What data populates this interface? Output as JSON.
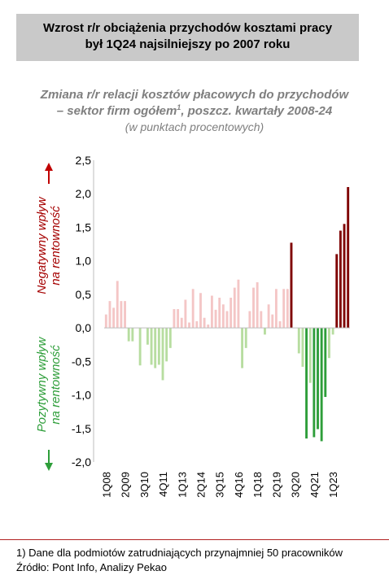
{
  "header": {
    "title_line1": "Wzrost r/r obciążenia przychodów kosztami pracy",
    "title_line2": "był 1Q24 najsilniejszy po 2007 roku"
  },
  "chart_data": {
    "type": "bar",
    "title_line1": "Zmiana r/r relacji kosztów płacowych do przychodów",
    "title_line2_prefix": "– sektor firm ogółem",
    "title_line2_sup": "1",
    "title_line2_suffix": ", poszcz. kwartały 2008-24",
    "subtitle": "(w punktach procentowych)",
    "negative_label_line1": "Negatywny wpływ",
    "negative_label_line2": "na rentowność",
    "positive_label_line1": "Pozytywny wpływ",
    "positive_label_line2": "na rentowność",
    "ylim": [
      -2.0,
      2.5
    ],
    "y_ticks": [
      "2,5",
      "2,0",
      "1,5",
      "1,0",
      "0,5",
      "0,0",
      "-0,5",
      "-1,0",
      "-1,5",
      "-2,0"
    ],
    "x_tick_labels": [
      "1Q08",
      "2Q09",
      "3Q10",
      "4Q11",
      "1Q13",
      "2Q14",
      "3Q15",
      "4Q16",
      "1Q18",
      "2Q19",
      "3Q20",
      "4Q21",
      "1Q23"
    ],
    "categories": [
      "1Q08",
      "2Q08",
      "3Q08",
      "4Q08",
      "1Q09",
      "2Q09",
      "3Q09",
      "4Q09",
      "1Q10",
      "2Q10",
      "3Q10",
      "4Q10",
      "1Q11",
      "2Q11",
      "3Q11",
      "4Q11",
      "1Q12",
      "2Q12",
      "3Q12",
      "4Q12",
      "1Q13",
      "2Q13",
      "3Q13",
      "4Q13",
      "1Q14",
      "2Q14",
      "3Q14",
      "4Q14",
      "1Q15",
      "2Q15",
      "3Q15",
      "4Q15",
      "1Q16",
      "2Q16",
      "3Q16",
      "4Q16",
      "1Q17",
      "2Q17",
      "3Q17",
      "4Q17",
      "1Q18",
      "2Q18",
      "3Q18",
      "4Q18",
      "1Q19",
      "2Q19",
      "3Q19",
      "4Q19",
      "1Q20",
      "2Q20",
      "3Q20",
      "4Q20",
      "1Q21",
      "2Q21",
      "3Q21",
      "4Q21",
      "1Q22",
      "2Q22",
      "3Q22",
      "4Q22",
      "1Q23",
      "2Q23",
      "3Q23",
      "4Q23",
      "1Q24"
    ],
    "values": [
      0.2,
      0.4,
      0.3,
      0.7,
      0.4,
      0.4,
      -0.2,
      -0.2,
      0.0,
      -0.56,
      0.0,
      -0.25,
      -0.55,
      -0.6,
      -0.55,
      -0.78,
      -0.5,
      -0.3,
      0.28,
      0.28,
      0.15,
      0.42,
      0.08,
      0.58,
      0.1,
      0.52,
      0.15,
      0.05,
      0.48,
      0.27,
      0.45,
      0.35,
      0.25,
      0.45,
      0.6,
      0.72,
      -0.6,
      -0.3,
      0.25,
      0.6,
      0.68,
      0.25,
      -0.1,
      0.35,
      0.2,
      0.58,
      0.1,
      0.58,
      0.58,
      1.27,
      0.0,
      -0.38,
      -0.58,
      -1.65,
      -0.82,
      -1.63,
      -1.51,
      -1.69,
      -1.03,
      -0.45,
      -0.1,
      1.1,
      1.45,
      1.55,
      2.1
    ],
    "colors": {
      "positive_strong": "#7f0000",
      "positive_light": "#f4c6c6",
      "negative_strong": "#2e9e3a",
      "negative_light": "#b7dda0",
      "arrow_up": "#c00000",
      "arrow_down": "#2e9e3a",
      "negative_label": "#a50000",
      "positive_label": "#2e9e3a"
    },
    "grid": false,
    "legend": "none"
  },
  "footer": {
    "note": "1) Dane dla podmiotów zatrudniających przynajmniej 50 pracowników",
    "source": "Źródło: Pont Info, Analizy Pekao"
  }
}
